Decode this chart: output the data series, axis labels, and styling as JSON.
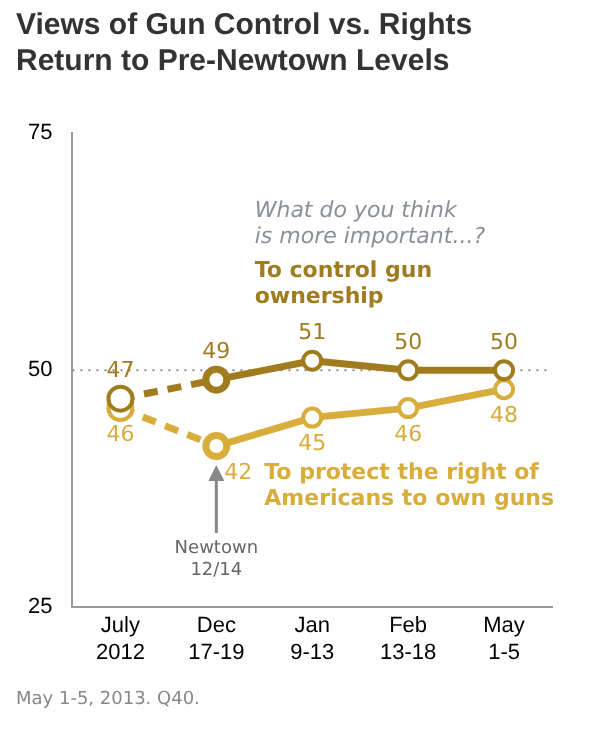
{
  "chart_data": {
    "type": "line",
    "title": "Views of Gun Control vs. Rights Return to Pre-Newtown Levels",
    "categories": [
      "July 2012",
      "Dec 17-19",
      "Jan 9-13",
      "Feb 13-18",
      "May 1-5"
    ],
    "series": [
      {
        "color": "#a07c1f",
        "values": [
          47,
          49,
          null,
          null,
          null
        ],
        "value_labels": [
          "47",
          null,
          null,
          null,
          null
        ],
        "line_style": "dashed"
      },
      {
        "name": "To control gun ownership",
        "color": "#a07c1f",
        "values": [
          null,
          49,
          51,
          50,
          50
        ],
        "value_labels": [
          null,
          "49",
          "51",
          "50",
          "50"
        ],
        "line_style": "solid"
      },
      {
        "color": "#d9ad3c",
        "values": [
          46,
          42,
          null,
          null,
          null
        ],
        "value_labels": [
          "46",
          null,
          null,
          null,
          null
        ],
        "line_style": "dashed"
      },
      {
        "name": "To protect the right of Americans to own guns",
        "color": "#d9ad3c",
        "values": [
          null,
          42,
          45,
          46,
          48
        ],
        "value_labels": [
          null,
          "42",
          "45",
          "46",
          "48"
        ],
        "line_style": "solid"
      }
    ],
    "ylim": [
      25,
      75
    ],
    "yticks": [
      25,
      50,
      75
    ],
    "grid": false,
    "legend": false,
    "marker": "circle",
    "ref_lines": [
      {
        "axis": "y",
        "value": 50,
        "color": "#888888",
        "line_style": "dotted"
      }
    ],
    "annotations": [
      "What do you think is more important...?",
      {
        "text": "Newtown 12/14",
        "x": "Dec 17-19",
        "y": 40
      },
      "May 1-5, 2013. Q40."
    ]
  }
}
